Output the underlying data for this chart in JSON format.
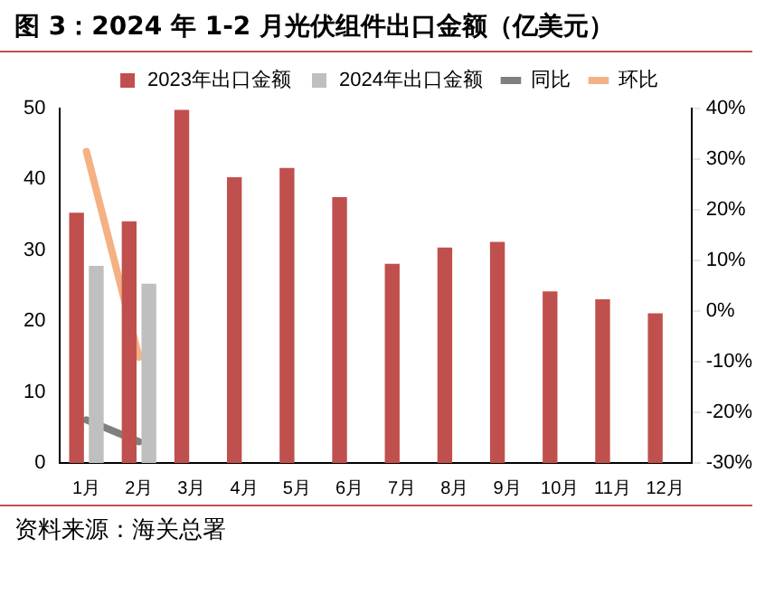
{
  "chart_data": {
    "type": "bar",
    "title": "图 3：2024 年 1-2 月光伏组件出口金额（亿美元）",
    "categories": [
      "1月",
      "2月",
      "3月",
      "4月",
      "5月",
      "6月",
      "7月",
      "8月",
      "9月",
      "10月",
      "11月",
      "12月"
    ],
    "series": [
      {
        "name": "2023年出口金额",
        "color": "#c0504d",
        "values": [
          35.3,
          34.1,
          49.8,
          40.3,
          41.6,
          37.5,
          28.1,
          30.4,
          31.2,
          24.2,
          23.1,
          21.1
        ]
      },
      {
        "name": "2024年出口金额",
        "color": "#bfbfbf",
        "values": [
          27.8,
          25.3,
          null,
          null,
          null,
          null,
          null,
          null,
          null,
          null,
          null,
          null
        ]
      },
      {
        "name": "同比",
        "type": "line",
        "axis": "y2",
        "color": "#7f7f7f",
        "values": [
          -21.5,
          -25.8,
          null,
          null,
          null,
          null,
          null,
          null,
          null,
          null,
          null,
          null
        ]
      },
      {
        "name": "环比",
        "type": "line",
        "axis": "y2",
        "color": "#f4b183",
        "values": [
          31.5,
          -9.1,
          null,
          null,
          null,
          null,
          null,
          null,
          null,
          null,
          null,
          null
        ]
      }
    ],
    "ylim": [
      0,
      50
    ],
    "yticks": [
      0,
      10,
      20,
      30,
      40,
      50
    ],
    "y2lim": [
      -30,
      40
    ],
    "y2ticks": [
      {
        "value": -30,
        "label": "-30%"
      },
      {
        "value": -20,
        "label": "-20%"
      },
      {
        "value": -10,
        "label": "-10%"
      },
      {
        "value": 0,
        "label": "0%"
      },
      {
        "value": 10,
        "label": "10%"
      },
      {
        "value": 20,
        "label": "20%"
      },
      {
        "value": 30,
        "label": "30%"
      },
      {
        "value": 40,
        "label": "40%"
      }
    ],
    "legend": "top",
    "grid": false,
    "marker": "none",
    "annotations": [
      "资料来源：海关总署"
    ]
  }
}
